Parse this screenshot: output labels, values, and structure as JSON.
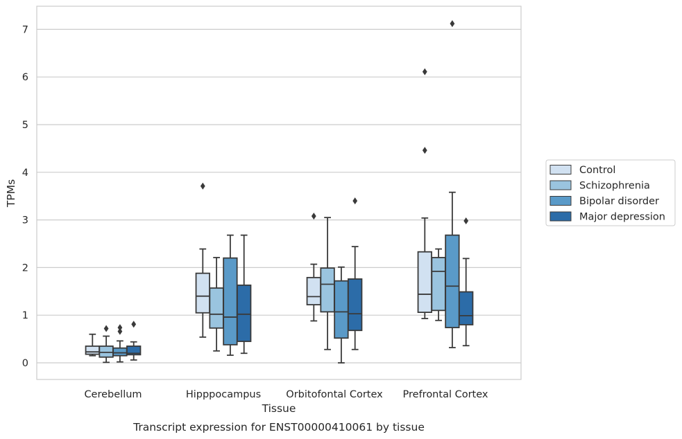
{
  "caption": "Transcript expression for ENST00000410061 by tissue",
  "chart_data": {
    "type": "boxplot",
    "xlabel": "Tissue",
    "ylabel": "TPMs",
    "ylim": [
      -0.35,
      7.5
    ],
    "yticks": [
      0,
      1,
      2,
      3,
      4,
      5,
      6,
      7
    ],
    "grid": "horizontal",
    "legend_position": "right",
    "categories": [
      "Cerebellum",
      "Hipppocampus",
      "Orbitofontal Cortex",
      "Prefrontal Cortex"
    ],
    "series": [
      {
        "name": "Control",
        "color": "#d1e1f1",
        "boxes": [
          {
            "wl": 0.15,
            "q1": 0.18,
            "med": 0.23,
            "q3": 0.35,
            "wh": 0.6,
            "outliers": []
          },
          {
            "wl": 0.54,
            "q1": 1.05,
            "med": 1.4,
            "q3": 1.88,
            "wh": 2.39,
            "outliers": [
              3.71
            ]
          },
          {
            "wl": 0.88,
            "q1": 1.22,
            "med": 1.39,
            "q3": 1.79,
            "wh": 2.07,
            "outliers": [
              3.08
            ]
          },
          {
            "wl": 0.93,
            "q1": 1.06,
            "med": 1.44,
            "q3": 2.33,
            "wh": 3.04,
            "outliers": [
              4.46,
              6.11
            ]
          }
        ]
      },
      {
        "name": "Schizophrenia",
        "color": "#9ac4df",
        "boxes": [
          {
            "wl": 0.01,
            "q1": 0.12,
            "med": 0.22,
            "q3": 0.35,
            "wh": 0.56,
            "outliers": [
              0.72
            ]
          },
          {
            "wl": 0.25,
            "q1": 0.73,
            "med": 1.02,
            "q3": 1.57,
            "wh": 2.21,
            "outliers": []
          },
          {
            "wl": 0.28,
            "q1": 1.07,
            "med": 1.65,
            "q3": 1.99,
            "wh": 3.05,
            "outliers": []
          },
          {
            "wl": 0.89,
            "q1": 1.1,
            "med": 1.92,
            "q3": 2.21,
            "wh": 2.39,
            "outliers": []
          }
        ]
      },
      {
        "name": "Bipolar disorder",
        "color": "#5a9ac8",
        "boxes": [
          {
            "wl": 0.02,
            "q1": 0.15,
            "med": 0.21,
            "q3": 0.31,
            "wh": 0.46,
            "outliers": [
              0.66,
              0.74
            ]
          },
          {
            "wl": 0.16,
            "q1": 0.38,
            "med": 0.96,
            "q3": 2.2,
            "wh": 2.68,
            "outliers": []
          },
          {
            "wl": 0.0,
            "q1": 0.52,
            "med": 1.07,
            "q3": 1.72,
            "wh": 2.01,
            "outliers": []
          },
          {
            "wl": 0.32,
            "q1": 0.74,
            "med": 1.61,
            "q3": 2.68,
            "wh": 3.58,
            "outliers": [
              7.12
            ]
          }
        ]
      },
      {
        "name": "Major depression",
        "color": "#2c6ca8",
        "boxes": [
          {
            "wl": 0.06,
            "q1": 0.17,
            "med": 0.2,
            "q3": 0.35,
            "wh": 0.44,
            "outliers": [
              0.81
            ]
          },
          {
            "wl": 0.2,
            "q1": 0.45,
            "med": 1.02,
            "q3": 1.63,
            "wh": 2.68,
            "outliers": []
          },
          {
            "wl": 0.28,
            "q1": 0.68,
            "med": 1.03,
            "q3": 1.76,
            "wh": 2.44,
            "outliers": [
              3.4
            ]
          },
          {
            "wl": 0.36,
            "q1": 0.8,
            "med": 0.99,
            "q3": 1.49,
            "wh": 2.19,
            "outliers": [
              2.98
            ]
          }
        ]
      }
    ]
  }
}
